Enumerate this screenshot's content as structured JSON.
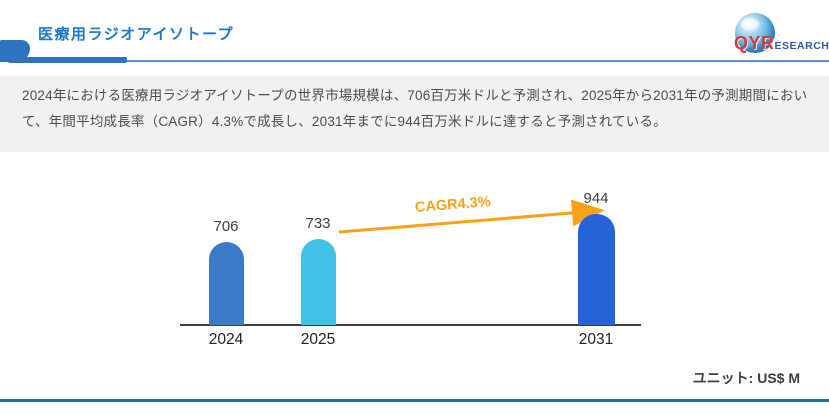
{
  "header": {
    "title": "医療用ラジオアイソトープ",
    "logo": {
      "qyr": "QYR",
      "research": "ESEARCH"
    }
  },
  "description": {
    "text": "2024年における医療用ラジオアイソトープの世界市場規模は、706百万米ドルと予測され、2025年から2031年の予測期間において、年間平均成長率（CAGR）4.3%で成長し、2031年までに944百万米ドルに達すると予測されている。"
  },
  "chart_data": {
    "type": "bar",
    "categories": [
      "2024",
      "2025",
      "2031"
    ],
    "values": [
      706,
      733,
      944
    ],
    "title": "",
    "xlabel": "",
    "ylabel": "",
    "ylim": [
      0,
      1000
    ],
    "unit": "US$ M",
    "cagr_label": "CAGR4.3%",
    "annotation": "orange growth arrow from 2025 bar top to 2031 bar top",
    "bar_colors": [
      "#3a7cc9",
      "#41c3e8",
      "#2563d6"
    ],
    "legend": []
  },
  "footer": {
    "unit_label": "ユニット: US$ M"
  },
  "colors": {
    "accent_orange": "#f9a11b",
    "title_blue": "#1b78cb",
    "line_blue": "#2f73c0",
    "footer_blue": "#2e6da4",
    "band_gray": "#f1f1f1"
  }
}
